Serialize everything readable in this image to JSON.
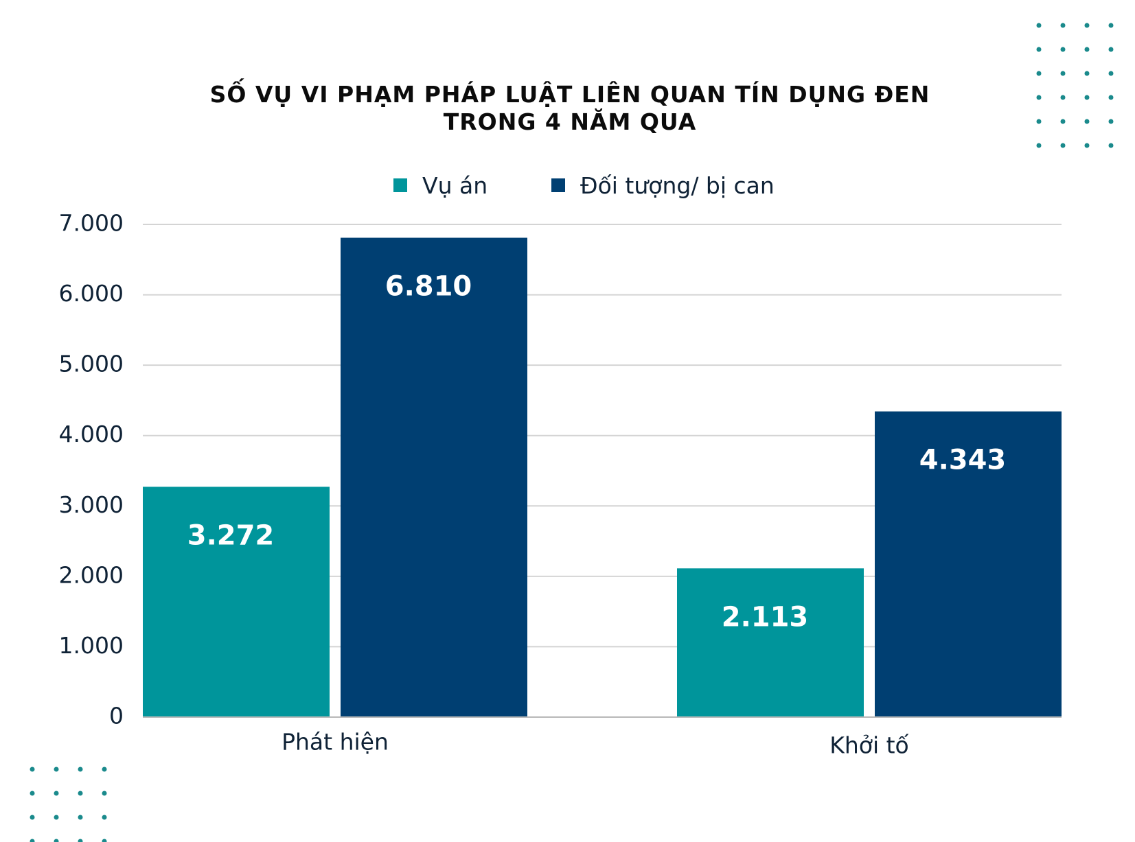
{
  "title_lines": [
    "SỐ VỤ VI PHẠM PHÁP LUẬT LIÊN QUAN TÍN DỤNG ĐEN",
    "TRONG 4 NĂM QUA"
  ],
  "legend": [
    {
      "label": "Vụ án",
      "color": "#00959b"
    },
    {
      "label": "Đối tượng/ bị can",
      "color": "#003f72"
    }
  ],
  "chart_data": {
    "type": "bar",
    "title": "SỐ VỤ VI PHẠM PHÁP LUẬT LIÊN QUAN TÍN DỤNG ĐEN TRONG 4 NĂM QUA",
    "categories": [
      "Phát hiện",
      "Khởi tố"
    ],
    "series": [
      {
        "name": "Vụ án",
        "values": [
          3272,
          2113
        ],
        "labels": [
          "3.272",
          "2.113"
        ],
        "color": "#00959b"
      },
      {
        "name": "Đối tượng/ bị can",
        "values": [
          6810,
          4343
        ],
        "labels": [
          "6.810",
          "4.343"
        ],
        "color": "#003f72"
      }
    ],
    "ylim": [
      0,
      7000
    ],
    "yticks": [
      0,
      1000,
      2000,
      3000,
      4000,
      5000,
      6000,
      7000
    ],
    "ytick_labels": [
      "0",
      "1.000",
      "2.000",
      "3.000",
      "4.000",
      "5.000",
      "6.000",
      "7.000"
    ],
    "xlabel": "",
    "ylabel": "",
    "grid": true,
    "legend_position": "top-center"
  },
  "decoration": {
    "dot_color": "#1a8a8c"
  }
}
